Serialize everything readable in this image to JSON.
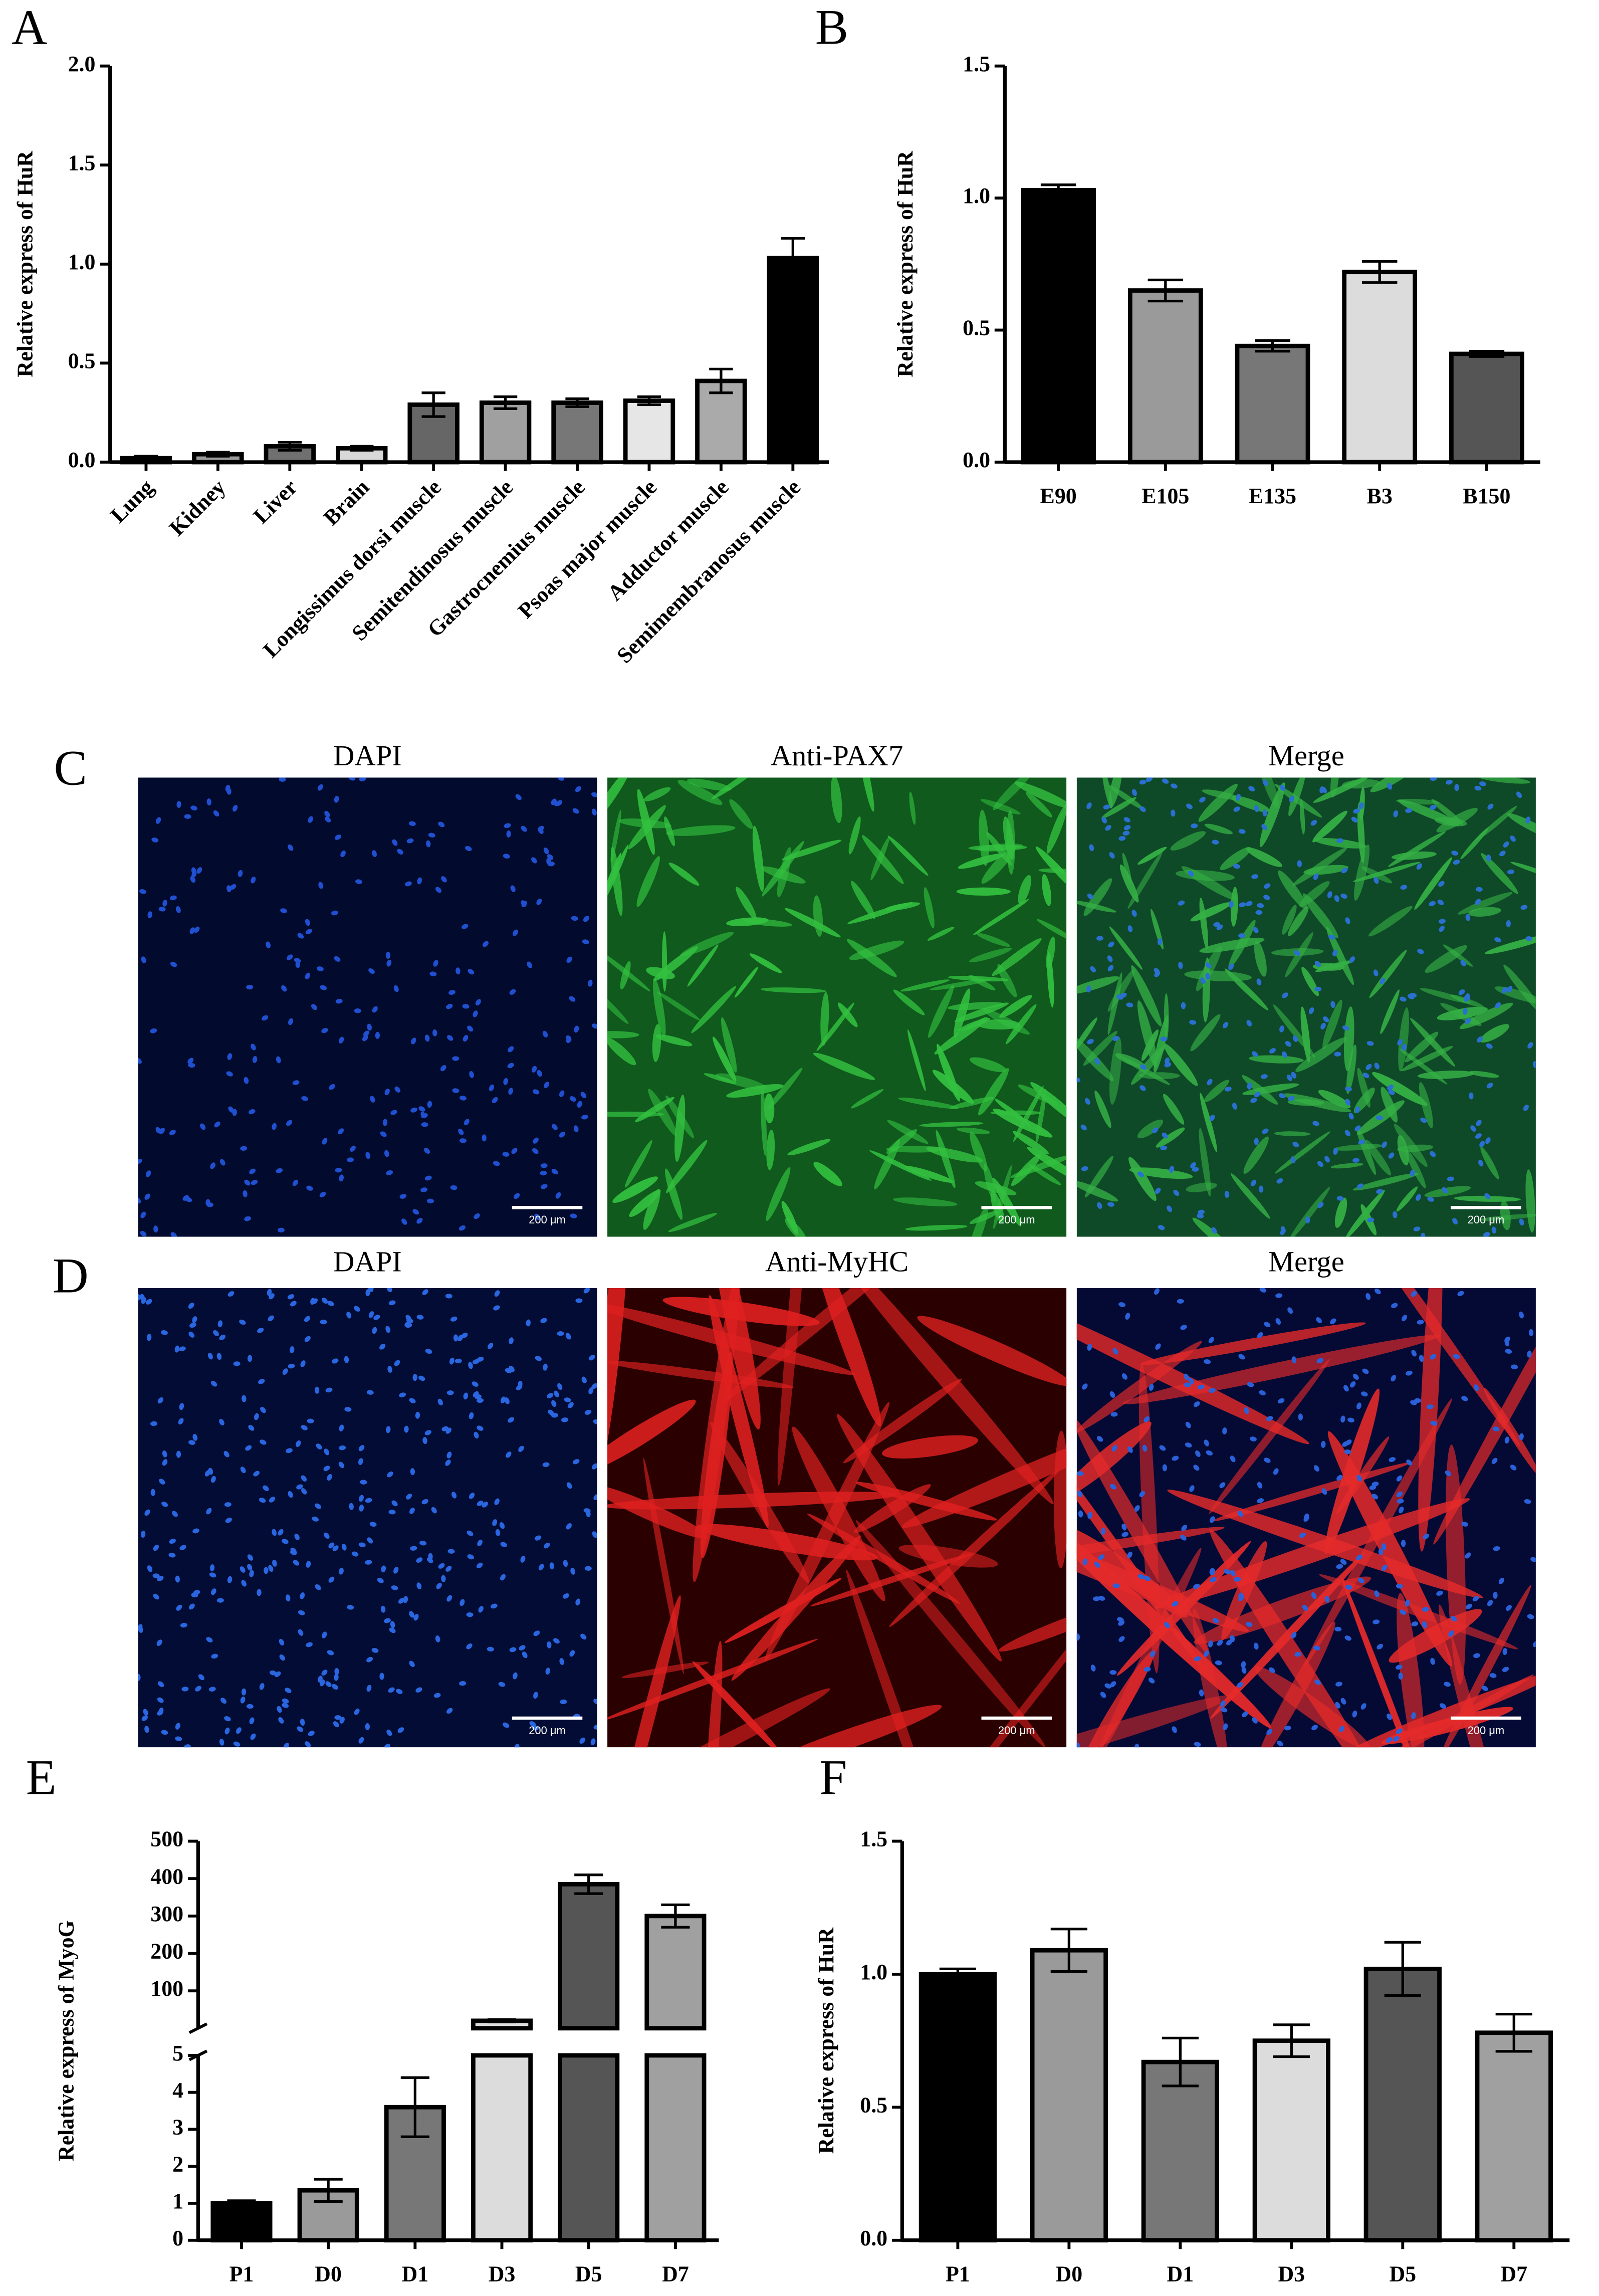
{
  "chart_data": [
    {
      "panel": "A",
      "type": "bar",
      "y_label": "Relative express of HuR",
      "categories": [
        "Lung",
        "Kidney",
        "Liver",
        "Brain",
        "Longissimus dorsi muscle",
        "Semitendinosus muscle",
        "Gastrocnemius muscle",
        "Psoas major muscle",
        "Adductor muscle",
        "Semimembranosus muscle"
      ],
      "values": [
        0.02,
        0.04,
        0.08,
        0.07,
        0.29,
        0.3,
        0.3,
        0.31,
        0.41,
        1.03
      ],
      "errors": [
        0.01,
        0.01,
        0.02,
        0.01,
        0.06,
        0.03,
        0.02,
        0.02,
        0.06,
        0.1
      ],
      "colors": [
        "#000000",
        "#9a9a9a",
        "#707070",
        "#d8d8d8",
        "#666666",
        "#a0a0a0",
        "#777777",
        "#e6e6e6",
        "#aaaaaa",
        "#000000"
      ],
      "ylim": [
        0,
        2
      ],
      "yticks": [
        {
          "value": 0,
          "label": "0.0"
        },
        {
          "value": 0.5,
          "label": "0.5"
        },
        {
          "value": 1,
          "label": "1.0"
        },
        {
          "value": 1.5,
          "label": "1.5"
        },
        {
          "value": 2,
          "label": "2.0"
        }
      ],
      "rotated_labels": true
    },
    {
      "panel": "B",
      "type": "bar",
      "y_label": "Relative express of HuR",
      "categories": [
        "E90",
        "E105",
        "E135",
        "B3",
        "B150"
      ],
      "values": [
        1.03,
        0.65,
        0.44,
        0.72,
        0.41
      ],
      "errors": [
        0.02,
        0.04,
        0.02,
        0.04,
        0.01
      ],
      "colors": [
        "#000000",
        "#9a9a9a",
        "#777777",
        "#dcdcdc",
        "#555555"
      ],
      "ylim": [
        0,
        1.5
      ],
      "yticks": [
        {
          "value": 0,
          "label": "0.0"
        },
        {
          "value": 0.5,
          "label": "0.5"
        },
        {
          "value": 1,
          "label": "1.0"
        },
        {
          "value": 1.5,
          "label": "1.5"
        }
      ]
    },
    {
      "panel": "E",
      "type": "bar",
      "y_label": "Relative express of MyoG",
      "axis_break": true,
      "categories": [
        "P1",
        "D0",
        "D1",
        "D3",
        "D5",
        "D7"
      ],
      "values": [
        1.0,
        1.35,
        3.6,
        20,
        385,
        300
      ],
      "errors": [
        0.07,
        0.3,
        0.8,
        3,
        25,
        30
      ],
      "colors": [
        "#000000",
        "#9a9a9a",
        "#777777",
        "#dcdcdc",
        "#555555",
        "#a0a0a0"
      ],
      "ylim": [
        0,
        5
      ],
      "yticks": [
        0,
        1,
        2,
        3,
        4,
        5
      ],
      "y2lim": [
        0,
        500
      ],
      "y2ticks": [
        100,
        200,
        300,
        400,
        500
      ]
    },
    {
      "panel": "F",
      "type": "bar",
      "y_label": "Relative  express of HuR",
      "categories": [
        "P1",
        "D0",
        "D1",
        "D3",
        "D5",
        "D7"
      ],
      "values": [
        1.0,
        1.09,
        0.67,
        0.75,
        1.02,
        0.78
      ],
      "errors": [
        0.02,
        0.08,
        0.09,
        0.06,
        0.1,
        0.07
      ],
      "colors": [
        "#000000",
        "#9a9a9a",
        "#777777",
        "#dcdcdc",
        "#555555",
        "#a0a0a0"
      ],
      "ylim": [
        0,
        1.5
      ],
      "yticks": [
        {
          "value": 0,
          "label": "0.0"
        },
        {
          "value": 0.5,
          "label": "0.5"
        },
        {
          "value": 1,
          "label": "1.0"
        },
        {
          "value": 1.5,
          "label": "1.5"
        }
      ]
    }
  ],
  "image_panels": [
    {
      "panel": "C",
      "titles": [
        "DAPI",
        "Anti-PAX7",
        "Merge"
      ],
      "scale_bar": "200 μm"
    },
    {
      "panel": "D",
      "titles": [
        "DAPI",
        "Anti-MyHC",
        "Merge"
      ],
      "scale_bar": "200 μm"
    }
  ]
}
